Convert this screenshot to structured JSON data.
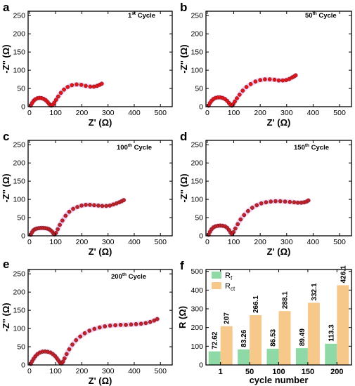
{
  "figure": {
    "eis_panels": [
      {
        "letter": "a",
        "cycle_number": "1",
        "cycle_suffix": "st",
        "cycle_word": " Cycle",
        "xlabel": "Z' (Ω)",
        "ylabel": "-Z'' (Ω)"
      },
      {
        "letter": "b",
        "cycle_number": "50",
        "cycle_suffix": "th",
        "cycle_word": " Cycle",
        "xlabel": "Z' (Ω)",
        "ylabel": "-Z'' (Ω)"
      },
      {
        "letter": "c",
        "cycle_number": "100",
        "cycle_suffix": "th",
        "cycle_word": " Cycle",
        "xlabel": "Z' (Ω)",
        "ylabel": "-Z'' (Ω)"
      },
      {
        "letter": "d",
        "cycle_number": "150",
        "cycle_suffix": "th",
        "cycle_word": " Cycle",
        "xlabel": "Z' (Ω)",
        "ylabel": "-Z'' (Ω)"
      },
      {
        "letter": "e",
        "cycle_number": "200",
        "cycle_suffix": "th",
        "cycle_word": " Cycle",
        "xlabel": "Z' (Ω)",
        "ylabel": "-Z'' (Ω)"
      }
    ],
    "bar_panel": {
      "letter": "f",
      "xlabel": "cycle number",
      "ylabel": "R (Ω)",
      "legend": [
        {
          "main": "R",
          "sub": "f",
          "color": "#8ed9a6"
        },
        {
          "main": "R",
          "sub": "ct",
          "color": "#f6c98a"
        }
      ]
    }
  },
  "chart_data": [
    {
      "type": "scatter",
      "panel": "a",
      "x_ticks": [
        "0",
        "100",
        "200",
        "300",
        "400",
        "500"
      ],
      "y_ticks": [
        "0",
        "50",
        "100",
        "150",
        "200",
        "250"
      ],
      "xlim": [
        -5,
        545
      ],
      "ylim": [
        0,
        262
      ],
      "series": [
        {
          "color": "#e8141c",
          "x": [
            5,
            10,
            16,
            22,
            30,
            38,
            46,
            54,
            62,
            69,
            75,
            80,
            84,
            89,
            95,
            102,
            110,
            120,
            132,
            146,
            162,
            180,
            198,
            215,
            232,
            246,
            258,
            268,
            276
          ],
          "y": [
            3,
            10,
            16,
            20,
            23,
            24,
            23.5,
            21.5,
            18,
            13,
            8,
            4,
            3,
            5,
            11,
            19,
            28,
            38,
            47,
            54,
            59,
            61,
            60,
            57,
            55,
            55,
            57,
            60,
            63
          ]
        }
      ]
    },
    {
      "type": "scatter",
      "panel": "b",
      "x_ticks": [
        "0",
        "100",
        "200",
        "300",
        "400",
        "500"
      ],
      "y_ticks": [
        "0",
        "50",
        "100",
        "150",
        "200",
        "250"
      ],
      "xlim": [
        -5,
        545
      ],
      "ylim": [
        0,
        262
      ],
      "series": [
        {
          "color": "#e8141c",
          "x": [
            5,
            10,
            16,
            23,
            31,
            40,
            49,
            58,
            67,
            75,
            82,
            88,
            93,
            98,
            104,
            112,
            122,
            134,
            148,
            164,
            182,
            200,
            218,
            236,
            254,
            270,
            285,
            298,
            310,
            320,
            328,
            334
          ],
          "y": [
            3,
            10,
            16,
            21,
            24,
            25.5,
            25.5,
            24,
            21,
            16,
            10,
            5,
            3,
            7,
            14,
            23,
            33,
            44,
            54,
            62,
            69,
            73,
            75,
            75,
            74,
            72,
            72,
            73,
            76,
            80,
            83,
            86
          ]
        }
      ]
    },
    {
      "type": "scatter",
      "panel": "c",
      "x_ticks": [
        "0",
        "100",
        "200",
        "300",
        "400",
        "500"
      ],
      "y_ticks": [
        "0",
        "50",
        "100",
        "150",
        "200",
        "250"
      ],
      "xlim": [
        -5,
        545
      ],
      "ylim": [
        0,
        262
      ],
      "series": [
        {
          "color": "#c2202a",
          "x": [
            5,
            10,
            15,
            21,
            28,
            36,
            44,
            52,
            60,
            68,
            75,
            81,
            87,
            92,
            96,
            101,
            108,
            116,
            126,
            138,
            152,
            167,
            183,
            199,
            215,
            231,
            247,
            263,
            278,
            293,
            307,
            320,
            332,
            343,
            352,
            360
          ],
          "y": [
            3,
            10,
            15,
            18,
            20,
            21,
            21.5,
            21.5,
            21,
            20,
            18,
            15,
            11,
            6,
            4,
            8,
            18,
            30,
            42,
            55,
            66,
            74,
            79,
            83,
            85,
            85,
            84,
            83,
            82,
            82,
            83,
            86,
            89,
            92,
            95,
            98
          ]
        }
      ]
    },
    {
      "type": "scatter",
      "panel": "d",
      "x_ticks": [
        "0",
        "100",
        "200",
        "300",
        "400",
        "500"
      ],
      "y_ticks": [
        "0",
        "50",
        "100",
        "150",
        "200",
        "250"
      ],
      "xlim": [
        -5,
        545
      ],
      "ylim": [
        0,
        262
      ],
      "series": [
        {
          "color": "#c2202a",
          "x": [
            5,
            10,
            16,
            23,
            31,
            40,
            49,
            58,
            67,
            75,
            82,
            88,
            93,
            99,
            106,
            115,
            126,
            139,
            154,
            170,
            187,
            204,
            222,
            240,
            258,
            276,
            294,
            312,
            328,
            342,
            355,
            366,
            375,
            382
          ],
          "y": [
            3,
            11,
            18,
            23,
            26,
            27.5,
            28,
            27.5,
            26,
            22,
            16,
            9,
            5,
            10,
            20,
            32,
            45,
            57,
            68,
            77,
            84,
            89,
            92,
            94,
            95,
            95,
            94,
            93,
            92,
            91,
            91,
            92,
            94,
            97
          ]
        }
      ]
    },
    {
      "type": "scatter",
      "panel": "e",
      "x_ticks": [
        "0",
        "100",
        "200",
        "300",
        "400",
        "500"
      ],
      "y_ticks": [
        "0",
        "50",
        "100",
        "150",
        "200",
        "250"
      ],
      "xlim": [
        -5,
        545
      ],
      "ylim": [
        0,
        262
      ],
      "series": [
        {
          "color": "#c2202a",
          "x": [
            5,
            10,
            16,
            23,
            31,
            40,
            50,
            60,
            70,
            80,
            89,
            97,
            104,
            110,
            115,
            119,
            123,
            128,
            134,
            142,
            152,
            164,
            178,
            194,
            211,
            229,
            248,
            268,
            288,
            308,
            328,
            348,
            368,
            388,
            407,
            426,
            444,
            461,
            476,
            488
          ],
          "y": [
            3,
            10,
            17,
            24,
            30,
            34,
            36.5,
            37,
            36,
            34,
            30,
            25,
            19,
            13,
            8,
            5,
            4,
            9,
            18,
            30,
            43,
            56,
            68,
            78,
            87,
            94,
            99,
            103,
            106,
            108,
            109,
            110,
            110,
            111,
            112,
            113,
            115,
            118,
            122,
            126
          ]
        }
      ]
    },
    {
      "type": "bar",
      "panel": "f",
      "categories": [
        "1",
        "50",
        "100",
        "150",
        "200"
      ],
      "y_ticks": [
        "0",
        "100",
        "200",
        "300",
        "400",
        "500"
      ],
      "ylim": [
        0,
        510
      ],
      "legend_position": "top-left",
      "series": [
        {
          "name": "Rf",
          "values": [
            72.62,
            83.26,
            86.53,
            89.49,
            113.3
          ],
          "labels": [
            "72.62",
            "83.26",
            "86.53",
            "89.49",
            "113.3"
          ]
        },
        {
          "name": "Rct",
          "values": [
            207,
            266.1,
            288.1,
            332.1,
            426.1
          ],
          "labels": [
            "207",
            "266.1",
            "288.1",
            "332.1",
            "426.1"
          ]
        }
      ]
    }
  ]
}
